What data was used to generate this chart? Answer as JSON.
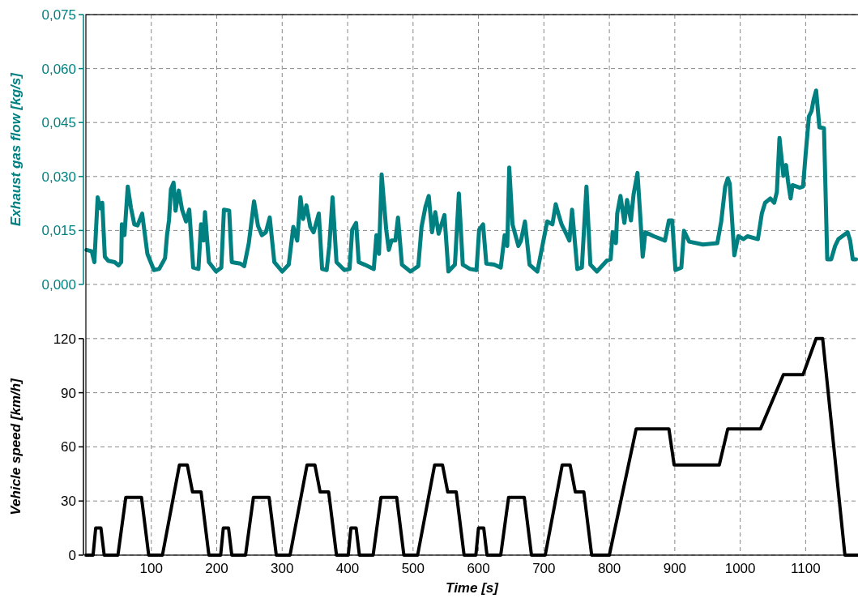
{
  "chart_data": [
    {
      "type": "line",
      "ylabel": "Exhaust gas flow [kg/s]",
      "xlim": [
        0,
        1180
      ],
      "xticks": [
        100,
        200,
        300,
        400,
        500,
        600,
        700,
        800,
        900,
        1000,
        1100
      ],
      "ylim": [
        0,
        0.075
      ],
      "yticks": [
        {
          "value": 0,
          "label": "0,000"
        },
        {
          "value": 0.015,
          "label": "0,015"
        },
        {
          "value": 0.03,
          "label": "0,030"
        },
        {
          "value": 0.045,
          "label": "0,045"
        },
        {
          "value": 0.06,
          "label": "0,060"
        },
        {
          "value": 0.075,
          "label": "0,075"
        }
      ],
      "grid": true,
      "tick_labels": "y",
      "marker": "none",
      "line_style": "solid",
      "x": [
        1,
        9,
        13,
        18,
        22,
        25,
        29,
        34,
        44,
        50,
        54,
        55,
        59,
        64,
        69,
        74,
        79,
        86,
        94,
        104,
        112,
        121,
        124,
        127,
        130,
        134,
        137,
        142,
        147,
        153,
        158,
        164,
        172,
        176,
        180,
        182,
        188,
        199,
        207,
        211,
        219,
        223,
        236,
        242,
        249,
        257,
        263,
        269,
        275,
        281,
        288,
        300,
        310,
        317,
        323,
        328,
        332,
        337,
        343,
        348,
        356,
        361,
        368,
        372,
        377,
        383,
        395,
        403,
        407,
        413,
        417,
        426,
        440,
        444,
        448,
        452,
        459,
        463,
        467,
        473,
        477,
        483,
        496,
        508,
        513,
        519,
        524,
        529,
        534,
        539,
        548,
        554,
        564,
        570,
        576,
        587,
        597,
        601,
        607,
        612,
        624,
        634,
        640,
        644,
        647,
        652,
        661,
        665,
        671,
        678,
        690,
        705,
        713,
        718,
        722,
        727,
        733,
        739,
        743,
        751,
        758,
        765,
        771,
        781,
        796,
        802,
        805,
        810,
        812,
        817,
        823,
        827,
        833,
        837,
        843,
        847,
        851,
        855,
        868,
        885,
        891,
        896,
        901,
        910,
        914,
        922,
        943,
        965,
        971,
        977,
        981,
        984,
        988,
        991,
        997,
        1005,
        1011,
        1027,
        1033,
        1038,
        1046,
        1052,
        1056,
        1060,
        1066,
        1070,
        1073,
        1077,
        1080,
        1091,
        1096,
        1100,
        1105,
        1109,
        1112,
        1116,
        1121,
        1128,
        1133,
        1139,
        1145,
        1150,
        1156,
        1164,
        1168,
        1172,
        1177
      ],
      "series": [
        {
          "color": "#008080",
          "values": [
            0.0096,
            0.0092,
            0.0062,
            0.0242,
            0.0212,
            0.0227,
            0.0077,
            0.0066,
            0.0062,
            0.0053,
            0.0062,
            0.0167,
            0.0137,
            0.0272,
            0.0212,
            0.0167,
            0.0164,
            0.0197,
            0.0085,
            0.004,
            0.0043,
            0.0073,
            0.0137,
            0.0178,
            0.0265,
            0.0283,
            0.0205,
            0.0261,
            0.0208,
            0.0175,
            0.0208,
            0.0047,
            0.0043,
            0.0167,
            0.0122,
            0.0201,
            0.0062,
            0.0036,
            0.0047,
            0.0208,
            0.0205,
            0.0062,
            0.0058,
            0.0051,
            0.0115,
            0.0231,
            0.0163,
            0.0137,
            0.0145,
            0.0186,
            0.0062,
            0.0036,
            0.0055,
            0.016,
            0.0122,
            0.0242,
            0.0182,
            0.022,
            0.016,
            0.0145,
            0.0197,
            0.0043,
            0.004,
            0.0107,
            0.0242,
            0.0062,
            0.004,
            0.0043,
            0.0152,
            0.0171,
            0.0062,
            0.0055,
            0.0043,
            0.0137,
            0.0085,
            0.0306,
            0.0152,
            0.0096,
            0.0122,
            0.0122,
            0.0186,
            0.0055,
            0.0036,
            0.0051,
            0.016,
            0.0216,
            0.0246,
            0.0145,
            0.0201,
            0.0141,
            0.0193,
            0.0036,
            0.0055,
            0.0253,
            0.0055,
            0.0043,
            0.004,
            0.0152,
            0.0167,
            0.0058,
            0.0055,
            0.0047,
            0.0137,
            0.0107,
            0.0325,
            0.0167,
            0.0107,
            0.0122,
            0.0175,
            0.0055,
            0.0036,
            0.0175,
            0.0167,
            0.0223,
            0.0197,
            0.0167,
            0.0145,
            0.0122,
            0.0208,
            0.0043,
            0.0047,
            0.0272,
            0.0055,
            0.0036,
            0.0066,
            0.007,
            0.0145,
            0.0115,
            0.0197,
            0.0246,
            0.0171,
            0.0235,
            0.0178,
            0.025,
            0.031,
            0.0197,
            0.0077,
            0.0145,
            0.0134,
            0.0122,
            0.0178,
            0.0178,
            0.004,
            0.0047,
            0.0149,
            0.0119,
            0.0111,
            0.0115,
            0.0175,
            0.0272,
            0.0295,
            0.028,
            0.0167,
            0.0081,
            0.0134,
            0.0126,
            0.0134,
            0.0126,
            0.0197,
            0.0227,
            0.0239,
            0.0227,
            0.0257,
            0.0407,
            0.0302,
            0.0332,
            0.0287,
            0.0239,
            0.0276,
            0.0269,
            0.0272,
            0.0362,
            0.0467,
            0.0482,
            0.0512,
            0.0539,
            0.0437,
            0.0434,
            0.007,
            0.007,
            0.0107,
            0.0126,
            0.0134,
            0.0145,
            0.0122,
            0.007,
            0.007
          ]
        }
      ]
    },
    {
      "type": "line",
      "xlabel": "Time [s]",
      "ylabel": "Vehicle speed [km/h]",
      "xlim": [
        0,
        1180
      ],
      "xticks": [
        100,
        200,
        300,
        400,
        500,
        600,
        700,
        800,
        900,
        1000,
        1100
      ],
      "ylim": [
        0,
        150
      ],
      "yticks": [
        0,
        30,
        60,
        90,
        120
      ],
      "grid": true,
      "marker": "none",
      "line_style": "solid",
      "x": [
        0,
        11,
        15,
        23,
        28,
        49,
        61,
        85,
        96,
        117,
        143,
        155,
        163,
        176,
        188,
        195,
        206,
        210,
        218,
        223,
        244,
        256,
        280,
        291,
        312,
        338,
        350,
        358,
        371,
        383,
        390,
        401,
        405,
        413,
        418,
        439,
        451,
        475,
        486,
        507,
        533,
        545,
        553,
        566,
        578,
        585,
        596,
        600,
        608,
        613,
        634,
        646,
        670,
        681,
        702,
        728,
        740,
        748,
        761,
        773,
        800,
        841,
        891,
        899,
        968,
        981,
        1031,
        1066,
        1096,
        1116,
        1126,
        1160,
        1180
      ],
      "series": [
        {
          "color": "#000000",
          "values": [
            0,
            0,
            15,
            15,
            0,
            0,
            32,
            32,
            0,
            0,
            50,
            50,
            35,
            35,
            0,
            0,
            0,
            15,
            15,
            0,
            0,
            32,
            32,
            0,
            0,
            50,
            50,
            35,
            35,
            0,
            0,
            0,
            15,
            15,
            0,
            0,
            32,
            32,
            0,
            0,
            50,
            50,
            35,
            35,
            0,
            0,
            0,
            15,
            15,
            0,
            0,
            32,
            32,
            0,
            0,
            50,
            50,
            35,
            35,
            0,
            0,
            70,
            70,
            50,
            50,
            70,
            70,
            100,
            100,
            120,
            120,
            0,
            0
          ]
        }
      ]
    }
  ]
}
